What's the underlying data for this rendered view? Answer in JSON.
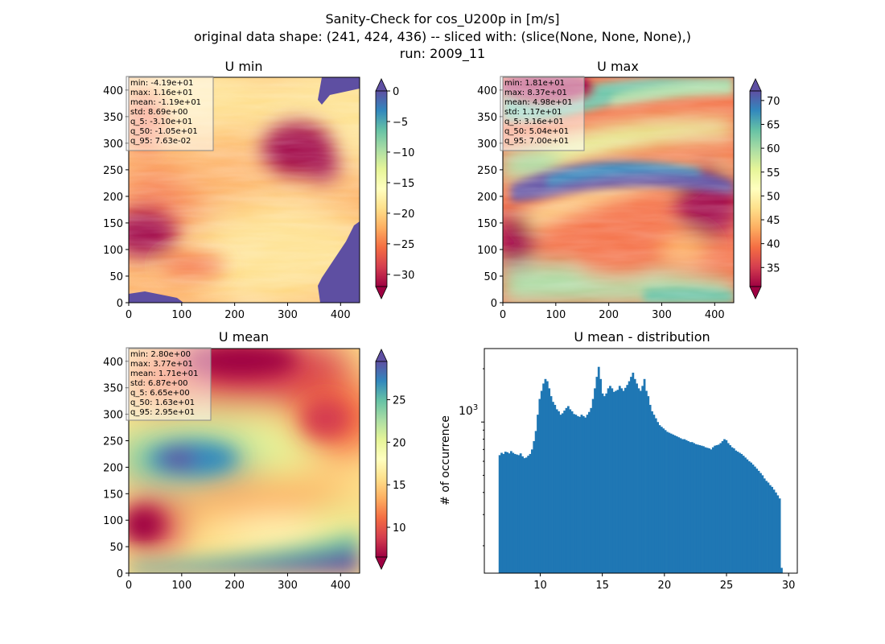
{
  "suptitle": [
    "Sanity-Check for cos_U200p in [m/s]",
    "original data shape: (241, 424, 436) -- sliced with: (slice(None, None, None),)",
    "run: 2009_11"
  ],
  "colors": {
    "histogram_bar": "#1f77b4",
    "spectral_r": [
      "#9e0142",
      "#d53e4f",
      "#f46d43",
      "#fdae61",
      "#fee08b",
      "#ffffbf",
      "#e6f598",
      "#abdda4",
      "#66c2a5",
      "#3288bd",
      "#5e4fa2"
    ]
  },
  "chart_data": [
    {
      "type": "heatmap",
      "title": "U min",
      "xlim": [
        0,
        436
      ],
      "ylim": [
        0,
        424
      ],
      "xticks": [
        0,
        100,
        200,
        300,
        400
      ],
      "yticks": [
        0,
        50,
        100,
        150,
        200,
        250,
        300,
        350,
        400
      ],
      "colorbar": {
        "min": -32,
        "max": 0,
        "ticks": [
          0,
          -5,
          -10,
          -15,
          -20,
          -25,
          -30
        ],
        "tick_labels": [
          "0",
          "−5",
          "−10",
          "−15",
          "−20",
          "−25",
          "−30"
        ],
        "extend": "both",
        "cmap": "Spectral"
      },
      "stats": [
        "min: -4.19e+01",
        "max: 1.16e+01",
        "mean: -1.19e+01",
        "std: 8.69e+00",
        "q_5: -3.10e+01",
        "q_50: -1.05e+01",
        "q_95: 7.63e-02"
      ]
    },
    {
      "type": "heatmap",
      "title": "U max",
      "xlim": [
        0,
        436
      ],
      "ylim": [
        0,
        424
      ],
      "xticks": [
        0,
        100,
        200,
        300,
        400
      ],
      "yticks": [
        0,
        50,
        100,
        150,
        200,
        250,
        300,
        350,
        400
      ],
      "colorbar": {
        "min": 31,
        "max": 72,
        "ticks": [
          35,
          40,
          45,
          50,
          55,
          60,
          65,
          70
        ],
        "tick_labels": [
          "35",
          "40",
          "45",
          "50",
          "55",
          "60",
          "65",
          "70"
        ],
        "extend": "both",
        "cmap": "Spectral"
      },
      "stats": [
        "min: 1.81e+01",
        "max: 8.37e+01",
        "mean: 4.98e+01",
        "std: 1.17e+01",
        "q_5: 3.16e+01",
        "q_50: 5.04e+01",
        "q_95: 7.00e+01"
      ]
    },
    {
      "type": "heatmap",
      "title": "U mean",
      "xlim": [
        0,
        436
      ],
      "ylim": [
        0,
        424
      ],
      "xticks": [
        0,
        100,
        200,
        300,
        400
      ],
      "yticks": [
        0,
        50,
        100,
        150,
        200,
        250,
        300,
        350,
        400
      ],
      "colorbar": {
        "min": 6.5,
        "max": 29.5,
        "ticks": [
          10,
          15,
          20,
          25
        ],
        "tick_labels": [
          "10",
          "15",
          "20",
          "25"
        ],
        "extend": "both",
        "cmap": "Spectral"
      },
      "stats": [
        "min: 2.80e+00",
        "max: 3.77e+01",
        "mean: 1.71e+01",
        "std: 6.87e+00",
        "q_5: 6.65e+00",
        "q_50: 1.63e+01",
        "q_95: 2.95e+01"
      ]
    },
    {
      "type": "bar",
      "title": "U mean - distribution",
      "ylabel": "# of occurrence",
      "xlabel": "",
      "yscale": "log",
      "xlim": [
        5.5,
        30.7
      ],
      "ylim": [
        140,
        2600
      ],
      "xticks": [
        10,
        15,
        20,
        25,
        30
      ],
      "ytick_label": "10",
      "ytick_label_exp": "3",
      "bin_range": [
        6.65,
        29.5
      ],
      "values": [
        650,
        670,
        660,
        680,
        675,
        665,
        685,
        670,
        660,
        655,
        650,
        665,
        640,
        625,
        630,
        645,
        660,
        700,
        780,
        890,
        1100,
        1350,
        1500,
        1650,
        1750,
        1700,
        1550,
        1400,
        1300,
        1250,
        1180,
        1150,
        1100,
        1120,
        1160,
        1200,
        1230,
        1180,
        1150,
        1110,
        1100,
        1080,
        1070,
        1100,
        1080,
        1060,
        1100,
        1140,
        1200,
        1350,
        1550,
        1800,
        2050,
        1750,
        1450,
        1400,
        1450,
        1550,
        1600,
        1550,
        1480,
        1500,
        1520,
        1600,
        1550,
        1500,
        1560,
        1620,
        1700,
        1800,
        1900,
        1750,
        1650,
        1550,
        1500,
        1600,
        1750,
        1500,
        1400,
        1250,
        1150,
        1100,
        1050,
        1000,
        960,
        940,
        920,
        900,
        880,
        870,
        860,
        850,
        840,
        830,
        820,
        810,
        800,
        800,
        790,
        780,
        770,
        770,
        760,
        750,
        745,
        740,
        735,
        730,
        720,
        715,
        710,
        700,
        720,
        735,
        740,
        745,
        760,
        780,
        800,
        790,
        760,
        740,
        720,
        710,
        690,
        680,
        670,
        660,
        645,
        630,
        615,
        600,
        590,
        575,
        560,
        545,
        530,
        515,
        500,
        480,
        465,
        455,
        440,
        430,
        415,
        400,
        385,
        370,
        150
      ]
    }
  ]
}
